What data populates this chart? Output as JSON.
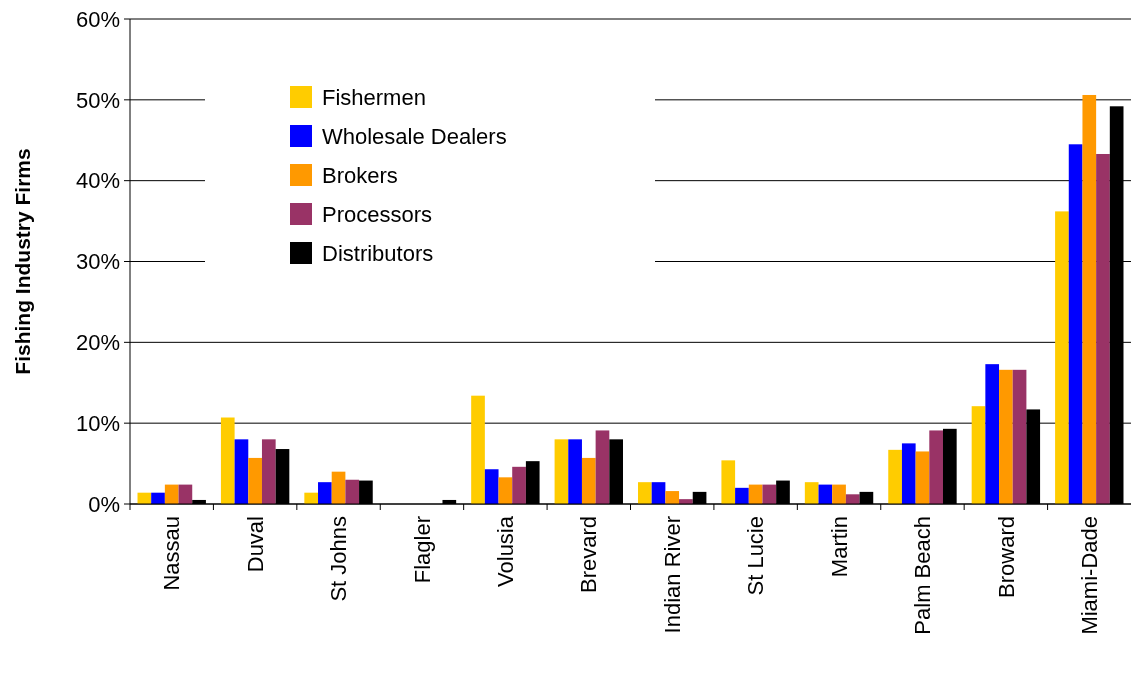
{
  "chart_data": {
    "type": "bar",
    "ylabel": "Fishing Industry Firms",
    "categories": [
      "Nassau",
      "Duval",
      "St Johns",
      "Flagler",
      "Volusia",
      "Brevard",
      "Indian River",
      "St Lucie",
      "Martin",
      "Palm Beach",
      "Broward",
      "Miami-Dade"
    ],
    "series": [
      {
        "name": "Fishermen",
        "color": "#ffcc00",
        "values": [
          1.4,
          10.7,
          1.4,
          0,
          13.4,
          8.0,
          2.7,
          5.4,
          2.7,
          6.7,
          12.1,
          36.2
        ]
      },
      {
        "name": "Wholesale Dealers",
        "color": "#0000ff",
        "values": [
          1.4,
          8.0,
          2.7,
          0,
          4.3,
          8.0,
          2.7,
          2.0,
          2.4,
          7.5,
          17.3,
          44.5
        ]
      },
      {
        "name": "Brokers",
        "color": "#ff9900",
        "values": [
          2.4,
          5.7,
          4.0,
          0,
          3.3,
          5.7,
          1.6,
          2.4,
          2.4,
          6.5,
          16.6,
          50.6
        ]
      },
      {
        "name": "Processors",
        "color": "#993366",
        "values": [
          2.4,
          8.0,
          3.0,
          0,
          4.6,
          9.1,
          0.6,
          2.4,
          1.2,
          9.1,
          16.6,
          43.3
        ]
      },
      {
        "name": "Distributors",
        "color": "#000000",
        "values": [
          0.5,
          6.8,
          2.9,
          0.5,
          5.3,
          8.0,
          1.5,
          2.9,
          1.5,
          9.3,
          11.7,
          49.2
        ]
      }
    ],
    "ylim": [
      0,
      60
    ],
    "yticks": [
      {
        "value": 0,
        "label": "0%"
      },
      {
        "value": 10,
        "label": "10%"
      },
      {
        "value": 20,
        "label": "20%"
      },
      {
        "value": 30,
        "label": "30%"
      },
      {
        "value": 40,
        "label": "40%"
      },
      {
        "value": 50,
        "label": "50%"
      },
      {
        "value": 60,
        "label": "60%"
      }
    ],
    "grid": "y",
    "legend": "top left"
  }
}
